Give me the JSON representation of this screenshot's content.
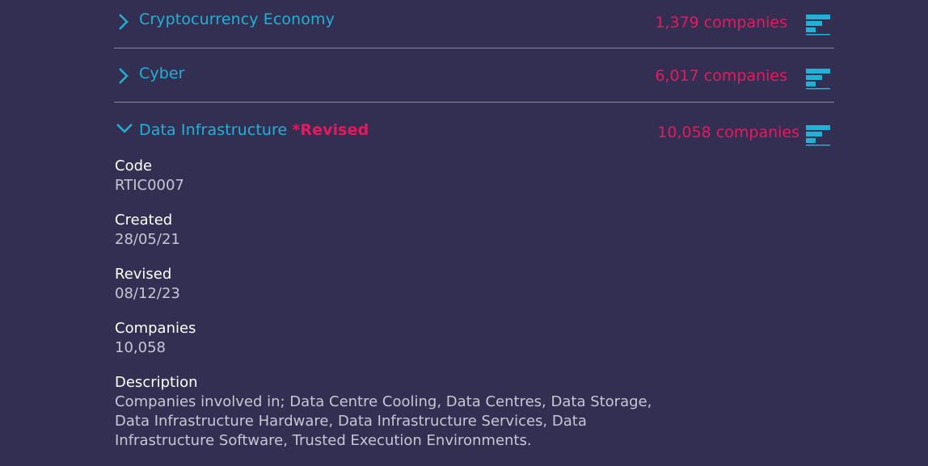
{
  "categories": [
    {
      "title": "Cryptocurrency Economy",
      "count": "1,379 companies",
      "expanded": false
    },
    {
      "title": "Cyber",
      "count": "6,017 companies",
      "expanded": false
    },
    {
      "title": "Data Infrastructure",
      "tag": "*Revised",
      "count": "10,058 companies",
      "expanded": true
    }
  ],
  "detail": {
    "code_label": "Code",
    "code_value": "RTIC0007",
    "created_label": "Created",
    "created_value": "28/05/21",
    "revised_label": "Revised",
    "revised_value": "08/12/23",
    "companies_label": "Companies",
    "companies_value": "10,058",
    "description_label": "Description",
    "description_value": "Companies involved in; Data Centre Cooling, Data Centres, Data Storage, Data Infrastructure Hardware, Data Infrastructure Services, Data Infrastructure Software, Trusted Execution Environments."
  },
  "colors": {
    "background": "#332f52",
    "accent_blue": "#1fb2d6",
    "accent_pink": "#e8185f"
  },
  "icons": {
    "collapsed": "chevron-right-icon",
    "expanded": "chevron-down-icon",
    "chart": "bar-chart-icon"
  }
}
